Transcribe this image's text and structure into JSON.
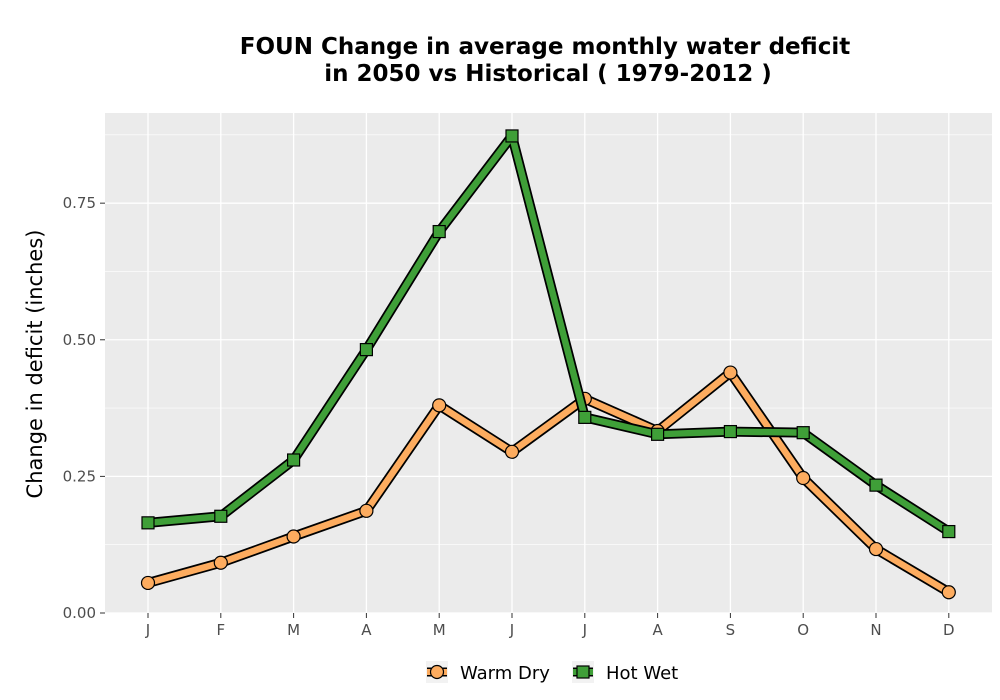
{
  "chart_data": {
    "type": "line",
    "title_line1": "FOUN  Change in average monthly water deficit",
    "title_line2": "in 2050 vs Historical ( 1979-2012 )",
    "xlabel": "",
    "ylabel": "Change in deficit (inches)",
    "categories": [
      "J",
      "F",
      "M",
      "A",
      "M",
      "J",
      "J",
      "A",
      "S",
      "O",
      "N",
      "D"
    ],
    "ylim": [
      0,
      0.915
    ],
    "yticks": [
      0,
      0.25,
      0.5,
      0.75
    ],
    "ytick_labels": [
      "0.00",
      "0.25",
      "0.50",
      "0.75"
    ],
    "grid": true,
    "legend_position": "bottom",
    "series": [
      {
        "name": "Warm Dry",
        "marker": "circle",
        "color": "#fdac5f",
        "values": [
          0.055,
          0.092,
          0.14,
          0.187,
          0.38,
          0.295,
          0.392,
          0.333,
          0.44,
          0.247,
          0.117,
          0.038
        ]
      },
      {
        "name": "Hot Wet",
        "marker": "square",
        "color": "#3f9f38",
        "values": [
          0.165,
          0.177,
          0.28,
          0.482,
          0.698,
          0.873,
          0.358,
          0.327,
          0.332,
          0.33,
          0.234,
          0.149
        ]
      }
    ],
    "colors": {
      "panel_background": "#ebebeb",
      "gridline": "#ffffff",
      "outline": "#000000"
    }
  }
}
